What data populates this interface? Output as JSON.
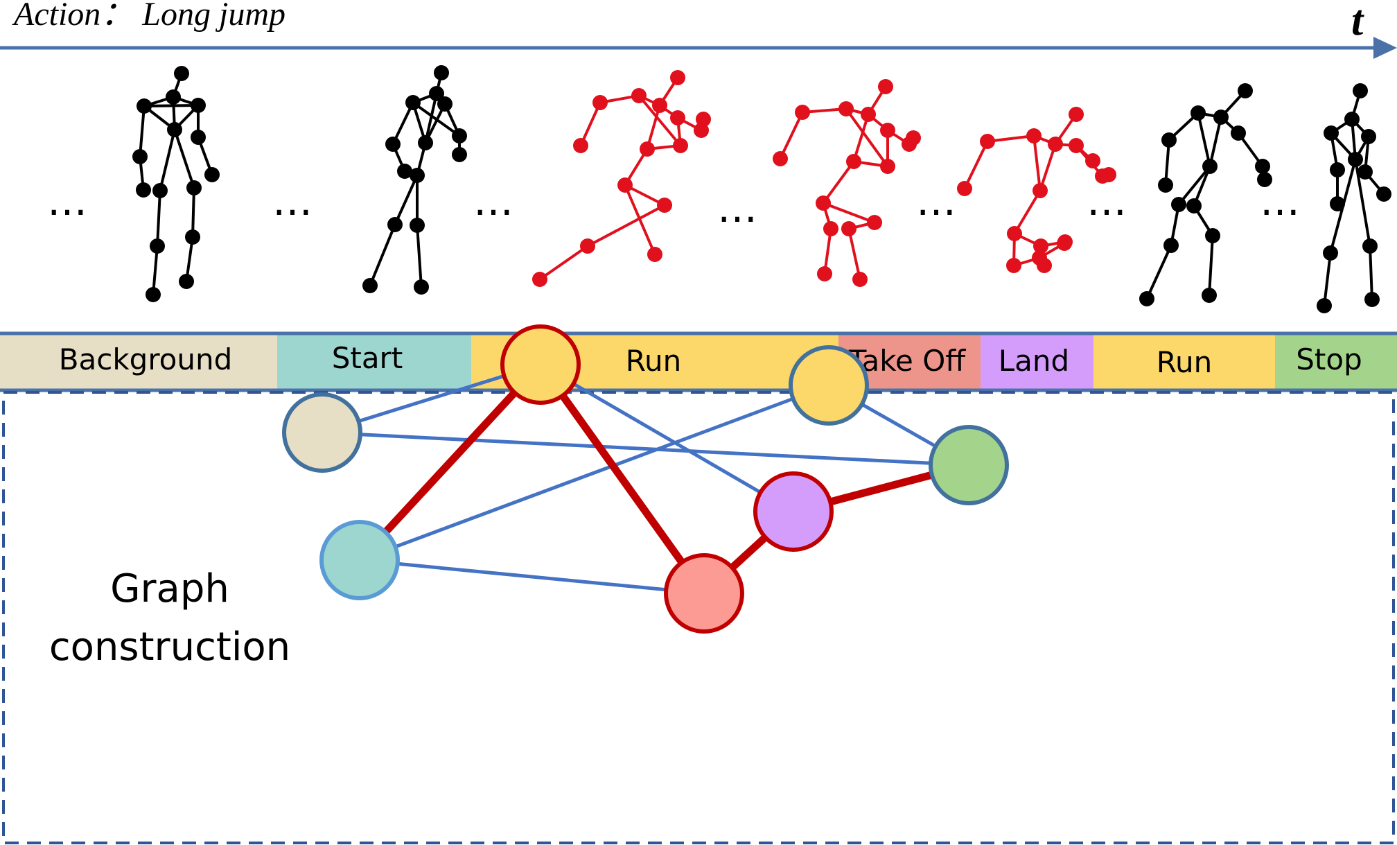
{
  "header": {
    "action_label": "Action： Long jump",
    "time_symbol": "t"
  },
  "colors": {
    "axis": "#4a72a8",
    "skeleton_black": "#000000",
    "skeleton_red": "#e0101d",
    "edge_blue": "#4472c4",
    "edge_red": "#c00000",
    "node_border_blue": "#41719c",
    "node_border_red": "#c00000"
  },
  "ellipsis": "…",
  "skeletons": [
    {
      "color": "black"
    },
    {
      "color": "black"
    },
    {
      "color": "red"
    },
    {
      "color": "red"
    },
    {
      "color": "red"
    },
    {
      "color": "black"
    },
    {
      "color": "black"
    }
  ],
  "segments": [
    {
      "label": "Background",
      "color": "#e6dfc6"
    },
    {
      "label": "Start",
      "color": "#9dd6cf"
    },
    {
      "label": "Run",
      "color": "#fcd86a"
    },
    {
      "label": "Take Off",
      "color": "#ee958b"
    },
    {
      "label": "Land",
      "color": "#d59dfb"
    },
    {
      "label": "Run",
      "color": "#fcd86a"
    },
    {
      "label": "Stop",
      "color": "#a4d48c"
    }
  ],
  "graph": {
    "label_line1": "Graph",
    "label_line2": "construction",
    "nodes": [
      {
        "id": "background",
        "fill": "#e6dfc6",
        "border": "#41719c"
      },
      {
        "id": "start",
        "fill": "#9dd6cf",
        "border": "#5b9bd5"
      },
      {
        "id": "run1",
        "fill": "#fcd86a",
        "border": "#c00000"
      },
      {
        "id": "takeoff",
        "fill": "#fb9b93",
        "border": "#c00000"
      },
      {
        "id": "land",
        "fill": "#d59dfb",
        "border": "#c00000"
      },
      {
        "id": "run2",
        "fill": "#fcd86a",
        "border": "#41719c"
      },
      {
        "id": "stop",
        "fill": "#a4d48c",
        "border": "#41719c"
      }
    ],
    "edges": [
      {
        "from": "background",
        "to": "run1",
        "kind": "blue"
      },
      {
        "from": "background",
        "to": "stop",
        "kind": "blue"
      },
      {
        "from": "start",
        "to": "run2",
        "kind": "blue"
      },
      {
        "from": "start",
        "to": "takeoff",
        "kind": "blue"
      },
      {
        "from": "run1",
        "to": "land",
        "kind": "blue"
      },
      {
        "from": "run2",
        "to": "stop",
        "kind": "blue"
      },
      {
        "from": "start",
        "to": "run1",
        "kind": "red"
      },
      {
        "from": "run1",
        "to": "takeoff",
        "kind": "red"
      },
      {
        "from": "takeoff",
        "to": "land",
        "kind": "red"
      },
      {
        "from": "land",
        "to": "stop",
        "kind": "red"
      }
    ]
  }
}
